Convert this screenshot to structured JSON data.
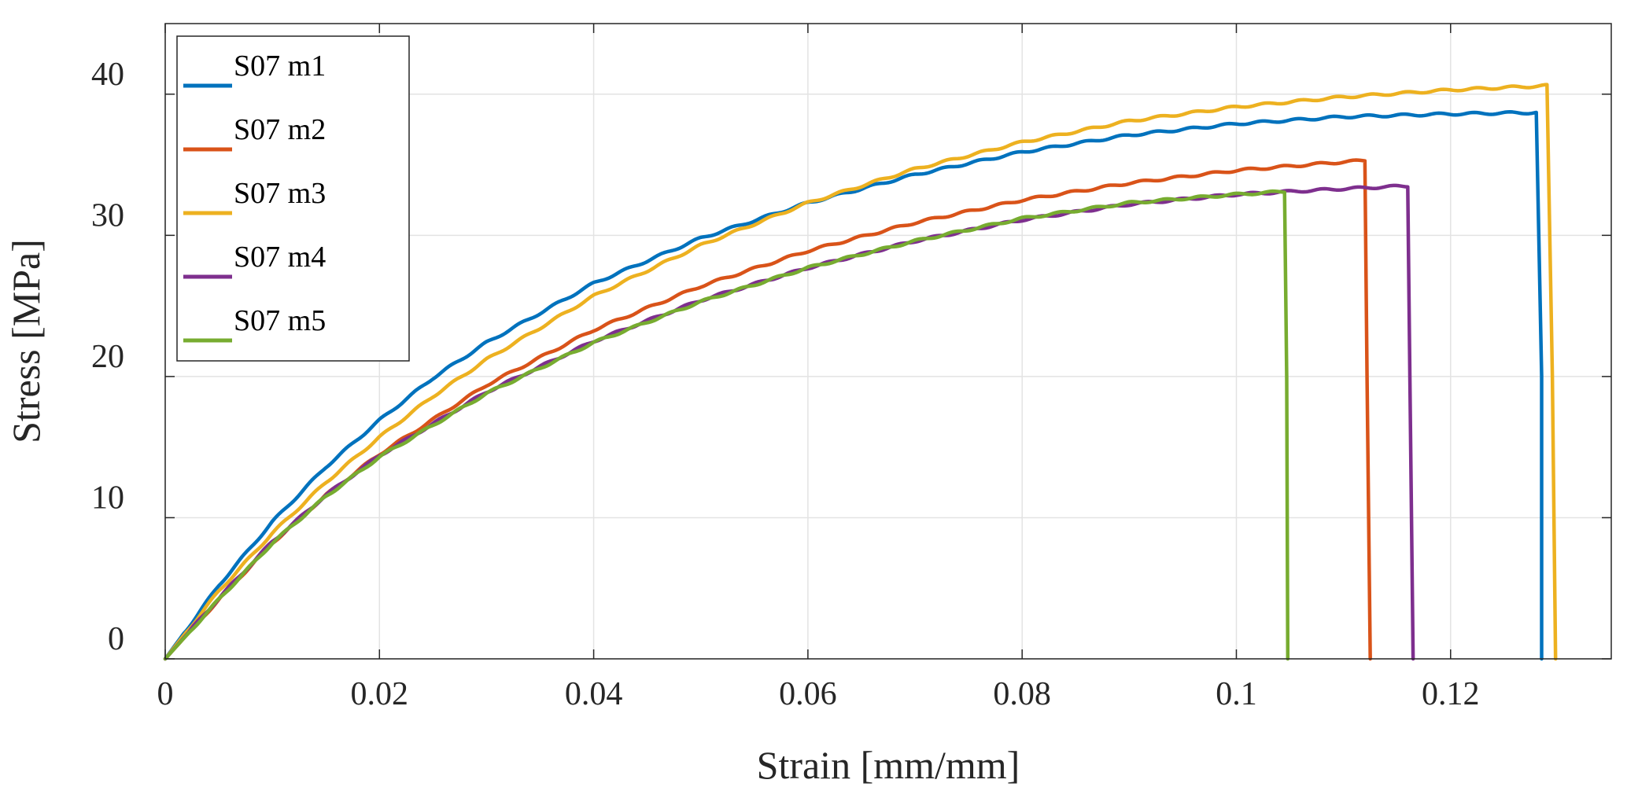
{
  "chart_data": {
    "type": "line",
    "title": "",
    "xlabel": "Strain [mm/mm]",
    "ylabel": "Stress [MPa]",
    "xlim": [
      0,
      0.135
    ],
    "ylim": [
      0,
      45
    ],
    "grid": true,
    "legend_position": "top-left",
    "x_ticks": [
      0,
      0.02,
      0.04,
      0.06,
      0.08,
      0.1,
      0.12
    ],
    "x_tick_labels": [
      "0",
      "0.02",
      "0.04",
      "0.06",
      "0.08",
      "0.1",
      "0.12"
    ],
    "y_ticks": [
      0,
      10,
      20,
      30,
      40
    ],
    "y_tick_labels": [
      "0",
      "10",
      "20",
      "30",
      "40"
    ],
    "series": [
      {
        "name": "S07 m1",
        "color": "#0072BD",
        "x": [
          0,
          0.005,
          0.01,
          0.015,
          0.02,
          0.025,
          0.03,
          0.04,
          0.05,
          0.06,
          0.07,
          0.08,
          0.09,
          0.1,
          0.11,
          0.12,
          0.128,
          0.1285,
          0.1285
        ],
        "y": [
          0,
          5.2,
          9.7,
          13.6,
          16.9,
          19.9,
          22.4,
          26.6,
          29.8,
          32.3,
          34.3,
          35.9,
          37.1,
          37.9,
          38.4,
          38.6,
          38.7,
          20,
          0
        ]
      },
      {
        "name": "S07 m2",
        "color": "#D95319",
        "x": [
          0,
          0.005,
          0.01,
          0.015,
          0.02,
          0.03,
          0.04,
          0.05,
          0.06,
          0.07,
          0.08,
          0.09,
          0.1,
          0.11,
          0.112,
          0.1122,
          0.1125
        ],
        "y": [
          0,
          4.2,
          8.2,
          11.6,
          14.5,
          19.4,
          23.3,
          26.4,
          28.9,
          30.9,
          32.5,
          33.7,
          34.6,
          35.2,
          35.3,
          20,
          0
        ]
      },
      {
        "name": "S07 m3",
        "color": "#EDB120",
        "x": [
          0,
          0.005,
          0.01,
          0.015,
          0.02,
          0.025,
          0.03,
          0.04,
          0.05,
          0.06,
          0.07,
          0.08,
          0.09,
          0.1,
          0.11,
          0.12,
          0.129,
          0.1295,
          0.1298
        ],
        "y": [
          0,
          4.8,
          8.9,
          12.5,
          15.7,
          18.6,
          21.2,
          25.7,
          29.3,
          32.3,
          34.7,
          36.6,
          38.1,
          39.1,
          39.8,
          40.3,
          40.6,
          20,
          0
        ]
      },
      {
        "name": "S07 m4",
        "color": "#7E2F8E",
        "x": [
          0,
          0.005,
          0.01,
          0.015,
          0.02,
          0.03,
          0.04,
          0.05,
          0.06,
          0.07,
          0.08,
          0.09,
          0.1,
          0.11,
          0.116,
          0.1162,
          0.1165
        ],
        "y": [
          0,
          4.3,
          8.3,
          11.6,
          14.4,
          18.9,
          22.5,
          25.4,
          27.7,
          29.6,
          31.1,
          32.2,
          32.9,
          33.3,
          33.5,
          20,
          0
        ]
      },
      {
        "name": "S07 m5",
        "color": "#77AC30",
        "x": [
          0,
          0.005,
          0.01,
          0.015,
          0.02,
          0.03,
          0.04,
          0.05,
          0.06,
          0.07,
          0.08,
          0.09,
          0.1,
          0.1045,
          0.1047,
          0.1048
        ],
        "y": [
          0,
          4.2,
          8.2,
          11.5,
          14.3,
          18.8,
          22.4,
          25.3,
          27.7,
          29.6,
          31.2,
          32.3,
          32.9,
          33.1,
          20,
          0
        ]
      }
    ]
  }
}
